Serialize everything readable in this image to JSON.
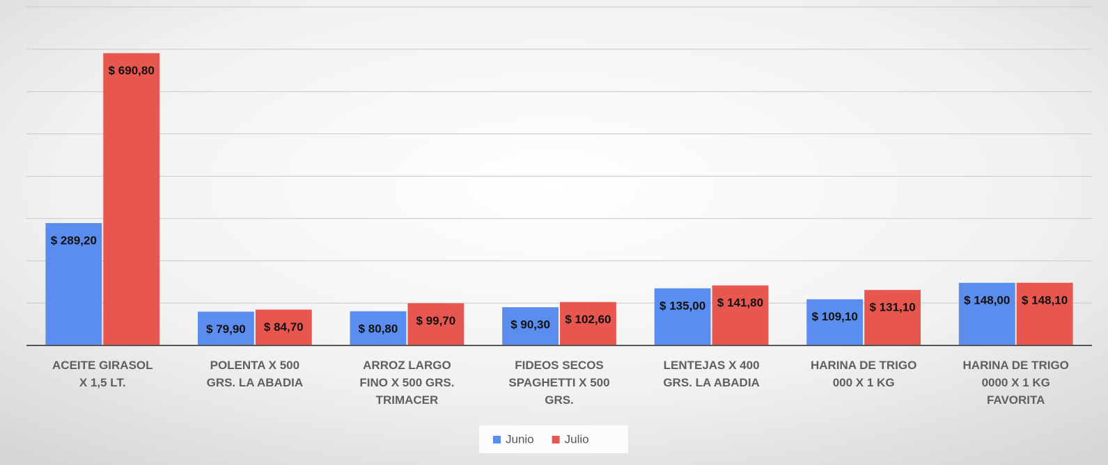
{
  "chart_data": {
    "type": "bar",
    "categories": [
      "ACEITE GIRASOL X 1,5 LT.",
      "POLENTA X 500 GRS. LA ABADIA",
      "ARROZ LARGO FINO X 500 GRS. TRIMACER",
      "FIDEOS SECOS SPAGHETTI X 500 GRS.",
      "LENTEJAS X 400 GRS. LA ABADIA",
      "HARINA DE TRIGO 000 X 1 KG",
      "HARINA DE TRIGO 0000 X 1 KG FAVORITA"
    ],
    "series": [
      {
        "name": "Junio",
        "color": "#5b8def",
        "values": [
          289.2,
          79.9,
          80.8,
          90.3,
          135.0,
          109.1,
          148.0
        ],
        "value_labels": [
          "$ 289,20",
          "$ 79,90",
          "$ 80,80",
          "$ 90,30",
          "$ 135,00",
          "$ 109,10",
          "$ 148,00"
        ]
      },
      {
        "name": "Julio",
        "color": "#e8574f",
        "values": [
          690.8,
          84.7,
          99.7,
          102.6,
          141.8,
          131.1,
          148.1
        ],
        "value_labels": [
          "$ 690,80",
          "$ 84,70",
          "$ 99,70",
          "$ 102,60",
          "$ 141,80",
          "$ 131,10",
          "$ 148,10"
        ]
      }
    ],
    "ylim": [
      0,
      800
    ],
    "yticks": [
      0,
      100,
      200,
      300,
      400,
      500,
      600,
      700,
      800
    ],
    "grid": true,
    "legend": "bottom"
  }
}
